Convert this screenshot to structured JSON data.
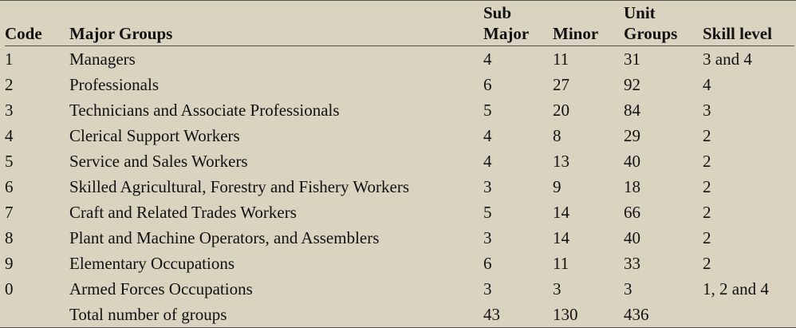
{
  "headers": {
    "code": "Code",
    "major_groups": "Major Groups",
    "sub_major": [
      "Sub",
      "Major"
    ],
    "minor": "Minor",
    "unit_groups": [
      "Unit",
      "Groups"
    ],
    "skill_level": "Skill level"
  },
  "rows": [
    {
      "code": "1",
      "name": "Managers",
      "sub": "4",
      "minor": "11",
      "unit": "31",
      "skill": "3 and 4"
    },
    {
      "code": "2",
      "name": "Professionals",
      "sub": "6",
      "minor": "27",
      "unit": "92",
      "skill": "4"
    },
    {
      "code": "3",
      "name": "Technicians and Associate Professionals",
      "sub": "5",
      "minor": "20",
      "unit": "84",
      "skill": "3"
    },
    {
      "code": "4",
      "name": "Clerical Support Workers",
      "sub": "4",
      "minor": "8",
      "unit": "29",
      "skill": "2"
    },
    {
      "code": "5",
      "name": "Service and Sales Workers",
      "sub": "4",
      "minor": "13",
      "unit": "40",
      "skill": "2"
    },
    {
      "code": "6",
      "name": "Skilled Agricultural, Forestry and Fishery Workers",
      "sub": "3",
      "minor": "9",
      "unit": "18",
      "skill": "2"
    },
    {
      "code": "7",
      "name": "Craft and Related Trades Workers",
      "sub": "5",
      "minor": "14",
      "unit": "66",
      "skill": "2"
    },
    {
      "code": "8",
      "name": "Plant and Machine Operators, and Assemblers",
      "sub": "3",
      "minor": "14",
      "unit": "40",
      "skill": "2"
    },
    {
      "code": "9",
      "name": "Elementary Occupations",
      "sub": "6",
      "minor": "11",
      "unit": "33",
      "skill": "2"
    },
    {
      "code": "0",
      "name": "Armed Forces Occupations",
      "sub": "3",
      "minor": "3",
      "unit": "3",
      "skill": "1, 2 and 4"
    }
  ],
  "total": {
    "label": "Total number of groups",
    "sub": "43",
    "minor": "130",
    "unit": "436",
    "skill": ""
  }
}
